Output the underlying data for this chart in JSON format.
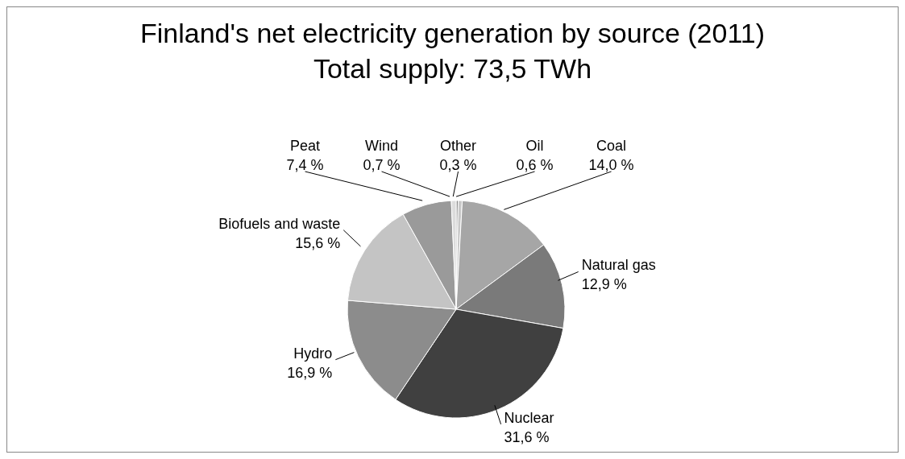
{
  "chart_data": {
    "type": "pie",
    "title": "Finland's net electricity generation by source (2011) Total supply: 73,5 TWh",
    "categories": [
      "Other",
      "Oil",
      "Coal",
      "Natural gas",
      "Nuclear",
      "Hydro",
      "Biofuels and waste",
      "Peat",
      "Wind"
    ],
    "values": [
      0.3,
      0.6,
      14.0,
      12.9,
      31.6,
      16.9,
      15.6,
      7.4,
      0.7
    ],
    "value_labels": [
      "0,3 %",
      "0,6 %",
      "14,0 %",
      "12,9 %",
      "31,6 %",
      "16,9 %",
      "15,6 %",
      "7,4 %",
      "0,7 %"
    ],
    "colors": [
      "#808080",
      "#c8c8c8",
      "#a6a6a6",
      "#7a7a7a",
      "#404040",
      "#8c8c8c",
      "#c4c4c4",
      "#9a9a9a",
      "#dcdcdc"
    ]
  }
}
